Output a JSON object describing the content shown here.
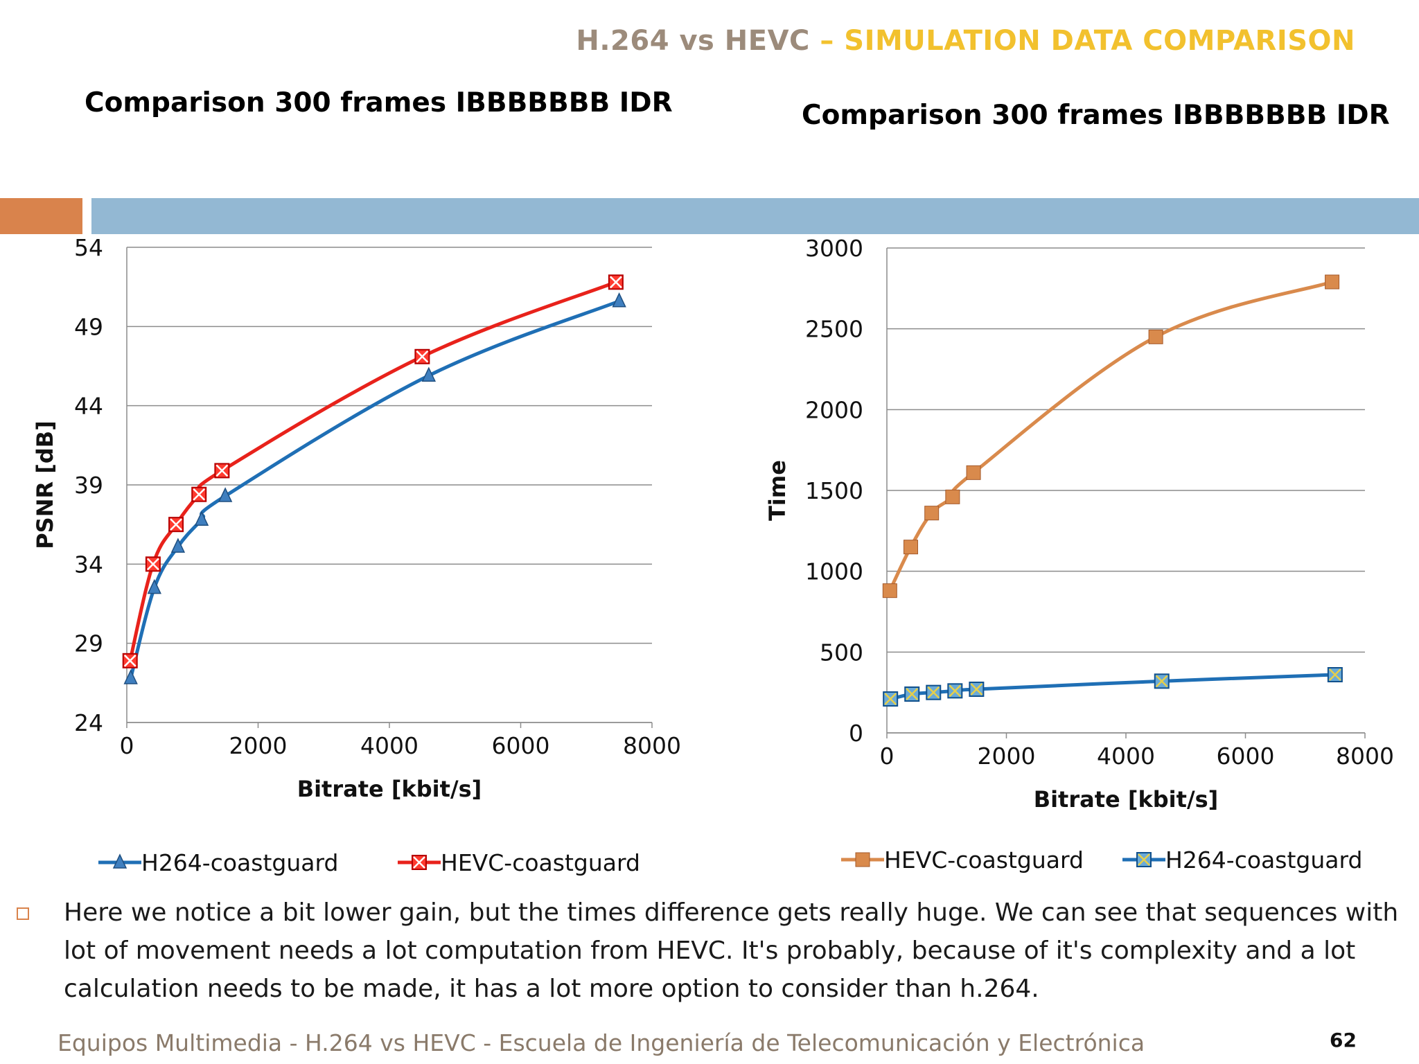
{
  "header": {
    "part1": "H.264 vs HEVC",
    "part2": "– SIMULATION DATA COMPARISON"
  },
  "colors": {
    "orange_bar": "#d9834c",
    "blue_bar": "#93b8d3",
    "header_gray": "#9c8b7b",
    "header_yellow": "#f2c12e"
  },
  "chart_data": [
    {
      "type": "line",
      "title": "Comparison 300 frames IBBBBBBB IDR",
      "xlabel": "Bitrate [kbit/s]",
      "ylabel": "PSNR [dB]",
      "xlim": [
        0,
        8000
      ],
      "ylim": [
        24,
        54
      ],
      "xticks": [
        0,
        2000,
        4000,
        6000,
        8000
      ],
      "yticks": [
        24,
        29,
        34,
        39,
        44,
        49,
        54
      ],
      "grid": true,
      "series": [
        {
          "name": "H264-coastguard",
          "color": "#1f6fb5",
          "marker": "triangle",
          "x": [
            60,
            420,
            780,
            1140,
            1500,
            4600,
            7500
          ],
          "y": [
            26.8,
            32.5,
            35.1,
            36.8,
            38.3,
            45.9,
            50.6
          ]
        },
        {
          "name": "HEVC-coastguard",
          "color": "#e8221b",
          "marker": "x-square",
          "x": [
            50,
            400,
            750,
            1100,
            1450,
            4500,
            7450
          ],
          "y": [
            27.9,
            34.0,
            36.5,
            38.4,
            39.9,
            47.1,
            51.8
          ]
        }
      ],
      "legend": [
        "H264-coastguard",
        "HEVC-coastguard"
      ]
    },
    {
      "type": "line",
      "title": "Comparison 300 frames  IBBBBBBB IDR",
      "xlabel": "Bitrate [kbit/s]",
      "ylabel": "Time",
      "xlim": [
        0,
        8000
      ],
      "ylim": [
        0,
        3000
      ],
      "xticks": [
        0,
        2000,
        4000,
        6000,
        8000
      ],
      "yticks": [
        0,
        500,
        1000,
        1500,
        2000,
        2500,
        3000
      ],
      "grid": true,
      "series": [
        {
          "name": "HEVC-coastguard",
          "color": "#d98a4c",
          "marker": "square",
          "x": [
            50,
            400,
            750,
            1100,
            1450,
            4500,
            7450
          ],
          "y": [
            880,
            1150,
            1360,
            1460,
            1610,
            2450,
            2790
          ]
        },
        {
          "name": "H264-coastguard",
          "color": "#1f6fb5",
          "marker": "x-square",
          "x": [
            60,
            420,
            780,
            1140,
            1500,
            4600,
            7500
          ],
          "y": [
            210,
            240,
            250,
            260,
            270,
            320,
            360
          ]
        }
      ],
      "legend": [
        "HEVC-coastguard",
        "H264-coastguard"
      ]
    }
  ],
  "body": {
    "bullet_text": "Here we notice a bit lower gain, but the times difference gets really huge. We can see that sequences with lot of movement needs a lot computation from HEVC. It's probably, because of it's complexity and a lot calculation needs to be made, it has a lot more option to consider than h.264."
  },
  "footer": {
    "text": "Equipos Multimedia - H.264 vs HEVC - Escuela de Ingeniería de Telecomunicación y Electrónica",
    "page_number": "62"
  }
}
